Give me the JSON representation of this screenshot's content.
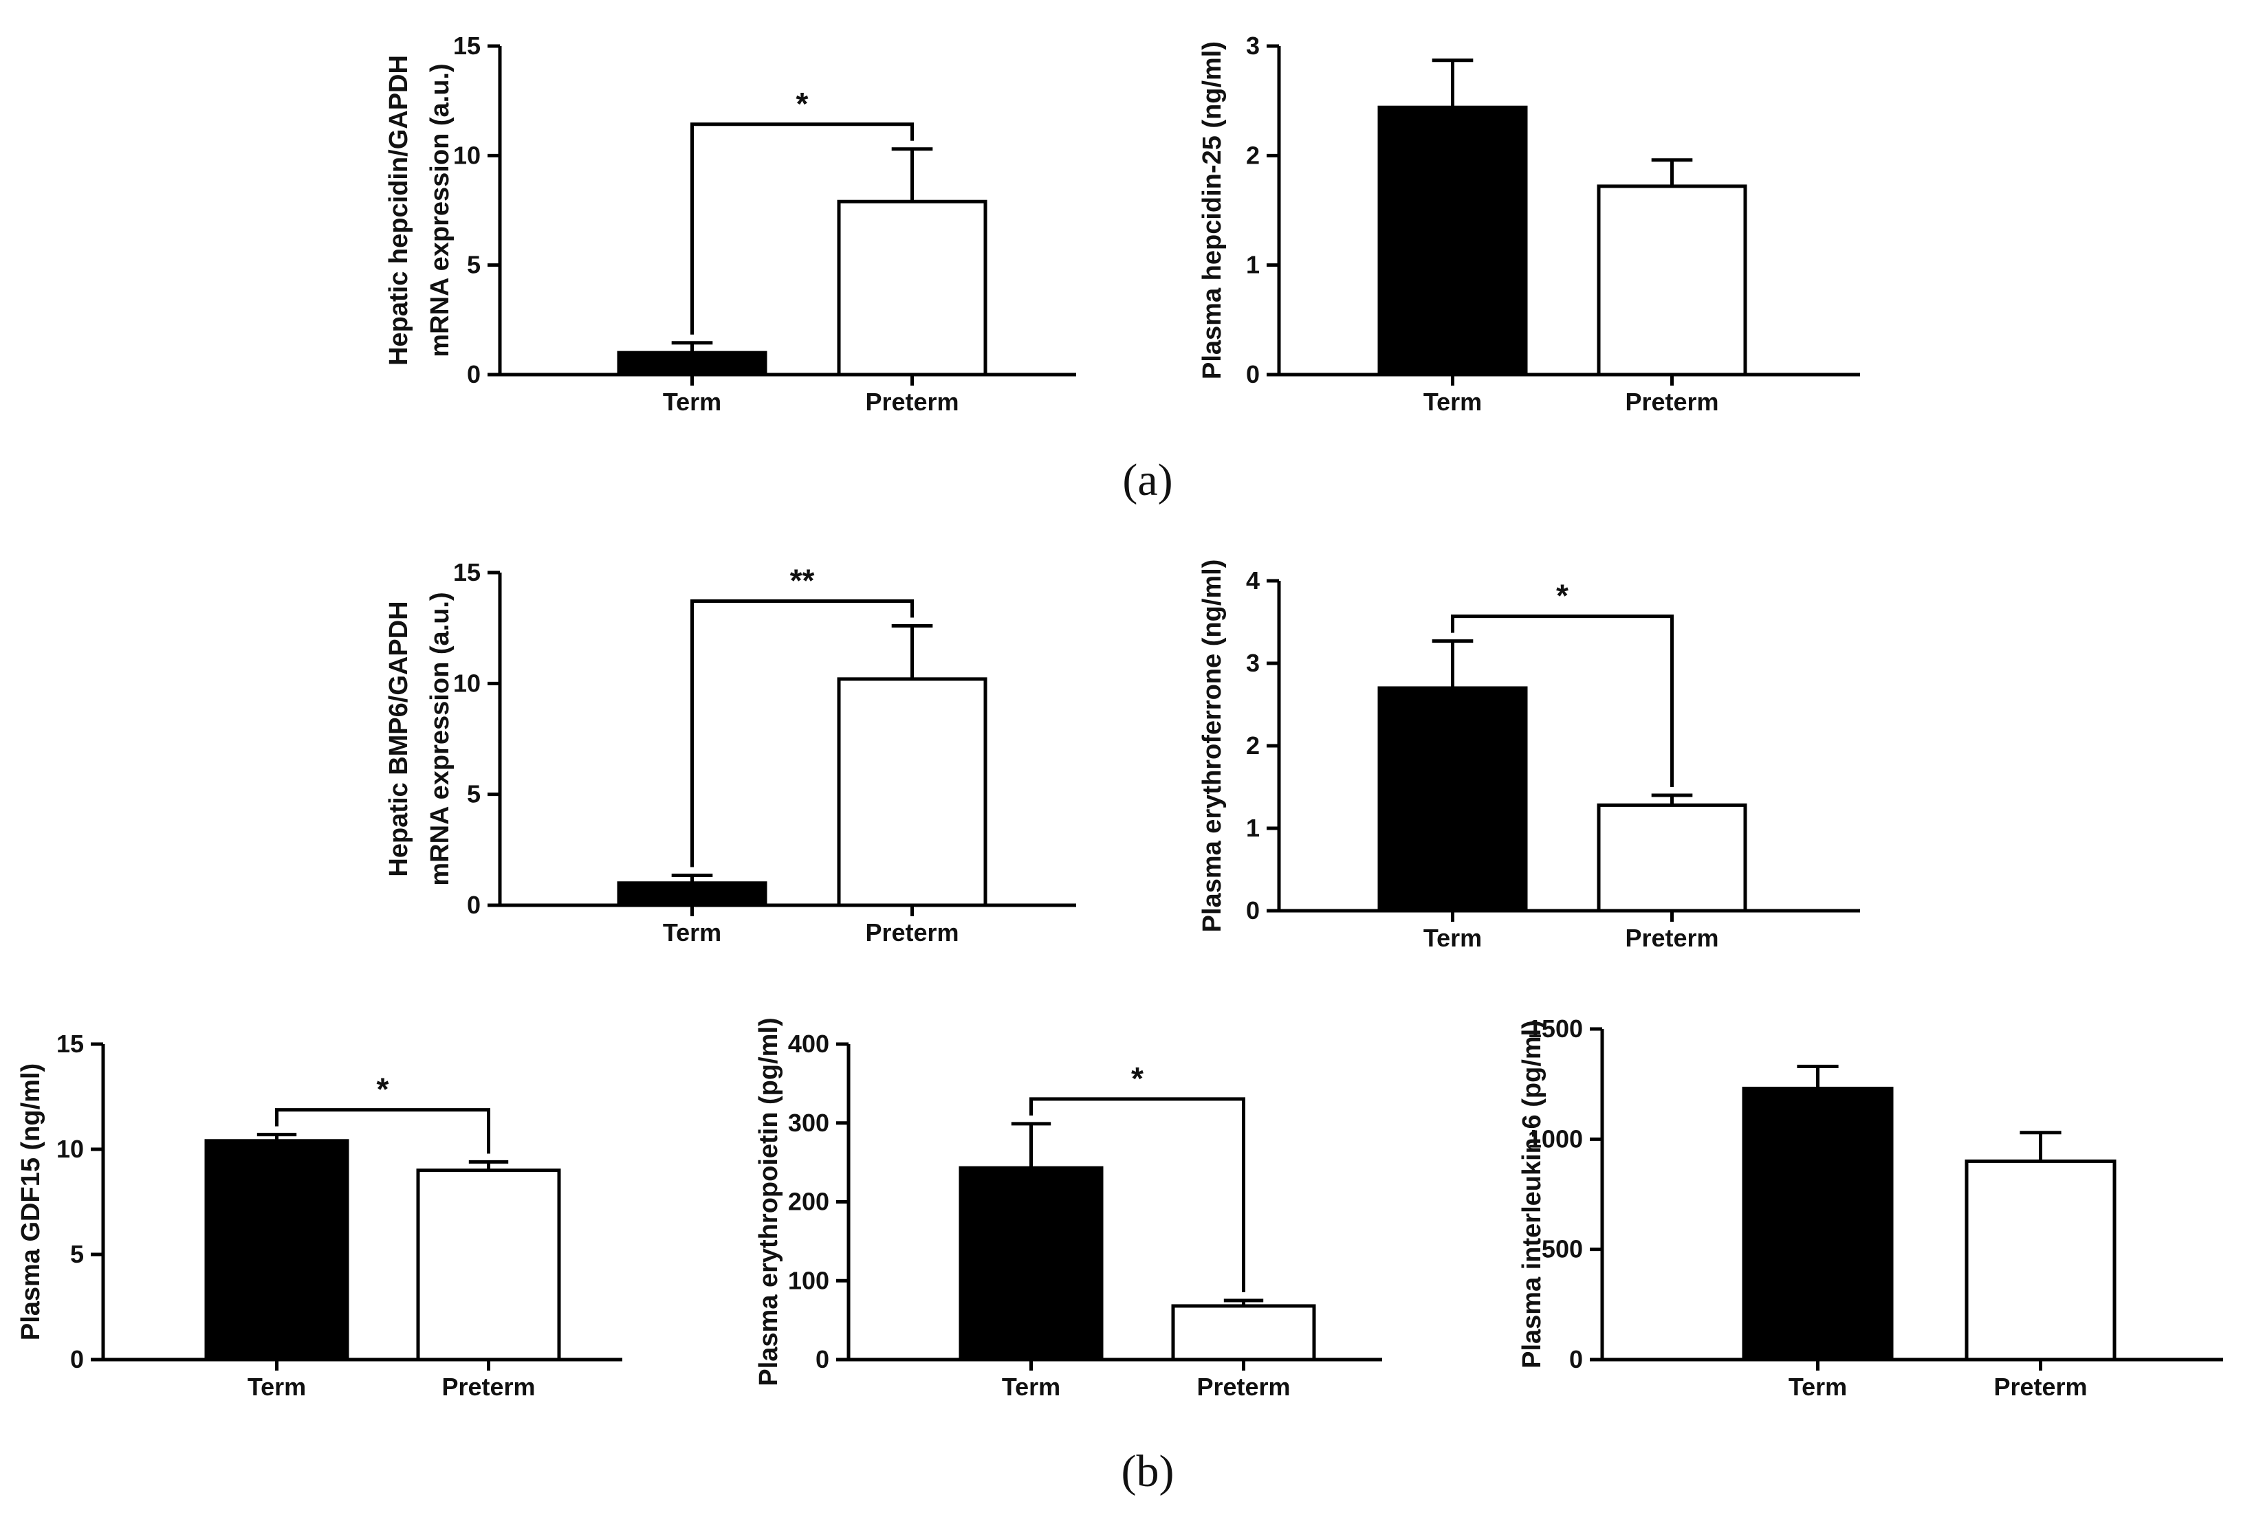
{
  "panel_labels": [
    "(a)",
    "(b)"
  ],
  "chart_data": [
    {
      "id": "a1",
      "type": "bar",
      "categories": [
        "Term",
        "Preterm"
      ],
      "values": [
        1.0,
        7.9
      ],
      "errors": [
        0.45,
        2.4
      ],
      "bar_colors": [
        "#000000",
        "#ffffff"
      ],
      "ylabel": [
        "Hepatic hepcidin/GAPDH",
        "mRNA expression (a.u.)"
      ],
      "ylim": [
        0,
        15
      ],
      "yticks": [
        0,
        5,
        10,
        15
      ],
      "ytick_labels": [
        "0",
        "5",
        "10",
        "15"
      ],
      "significance": "*"
    },
    {
      "id": "a2",
      "type": "bar",
      "categories": [
        "Term",
        "Preterm"
      ],
      "values": [
        2.44,
        1.72
      ],
      "errors": [
        0.43,
        0.24
      ],
      "bar_colors": [
        "#000000",
        "#ffffff"
      ],
      "ylabel": [
        "Plasma hepcidin-25 (ng/ml)"
      ],
      "ylim": [
        0,
        3
      ],
      "yticks": [
        0,
        1,
        2,
        3
      ],
      "ytick_labels": [
        "0",
        "1",
        "2",
        "3"
      ],
      "significance": ""
    },
    {
      "id": "b1",
      "type": "bar",
      "categories": [
        "Term",
        "Preterm"
      ],
      "values": [
        1.0,
        10.2
      ],
      "errors": [
        0.35,
        2.4
      ],
      "bar_colors": [
        "#000000",
        "#ffffff"
      ],
      "ylabel": [
        "Hepatic BMP6/GAPDH",
        "mRNA expression (a.u.)"
      ],
      "ylim": [
        0,
        15
      ],
      "yticks": [
        0,
        5,
        10,
        15
      ],
      "ytick_labels": [
        "0",
        "5",
        "10",
        "15"
      ],
      "significance": "**"
    },
    {
      "id": "b2",
      "type": "bar",
      "categories": [
        "Term",
        "Preterm"
      ],
      "values": [
        2.7,
        1.28
      ],
      "errors": [
        0.57,
        0.12
      ],
      "bar_colors": [
        "#000000",
        "#ffffff"
      ],
      "ylabel": [
        "Plasma erythroferrone (ng/ml)"
      ],
      "ylim": [
        0,
        4
      ],
      "yticks": [
        0,
        1,
        2,
        3,
        4
      ],
      "ytick_labels": [
        "0",
        "1",
        "2",
        "3",
        "4"
      ],
      "significance": "*"
    },
    {
      "id": "b3",
      "type": "bar",
      "categories": [
        "Term",
        "Preterm"
      ],
      "values": [
        10.4,
        9.0
      ],
      "errors": [
        0.3,
        0.4
      ],
      "bar_colors": [
        "#000000",
        "#ffffff"
      ],
      "ylabel": [
        "Plasma GDF15 (ng/ml)"
      ],
      "ylim": [
        0,
        15
      ],
      "yticks": [
        0,
        5,
        10,
        15
      ],
      "ytick_labels": [
        "0",
        "5",
        "10",
        "15"
      ],
      "significance": "*"
    },
    {
      "id": "b4",
      "type": "bar",
      "categories": [
        "Term",
        "Preterm"
      ],
      "values": [
        243,
        68
      ],
      "errors": [
        56,
        7
      ],
      "bar_colors": [
        "#000000",
        "#ffffff"
      ],
      "ylabel": [
        "Plasma erythropoietin (pg/ml)"
      ],
      "ylim": [
        0,
        400
      ],
      "yticks": [
        0,
        100,
        200,
        300,
        400
      ],
      "ytick_labels": [
        "0",
        "100",
        "200",
        "300",
        "400"
      ],
      "significance": "*"
    },
    {
      "id": "b5",
      "type": "bar",
      "categories": [
        "Term",
        "Preterm"
      ],
      "values": [
        1230,
        900
      ],
      "errors": [
        100,
        130
      ],
      "bar_colors": [
        "#000000",
        "#ffffff"
      ],
      "ylabel": [
        "Plasma interleukin-6 (pg/ml)"
      ],
      "ylim": [
        0,
        1500
      ],
      "yticks": [
        0,
        500,
        1000,
        1500
      ],
      "ytick_labels": [
        "0",
        "500",
        "1000",
        "1500"
      ],
      "significance": ""
    }
  ]
}
